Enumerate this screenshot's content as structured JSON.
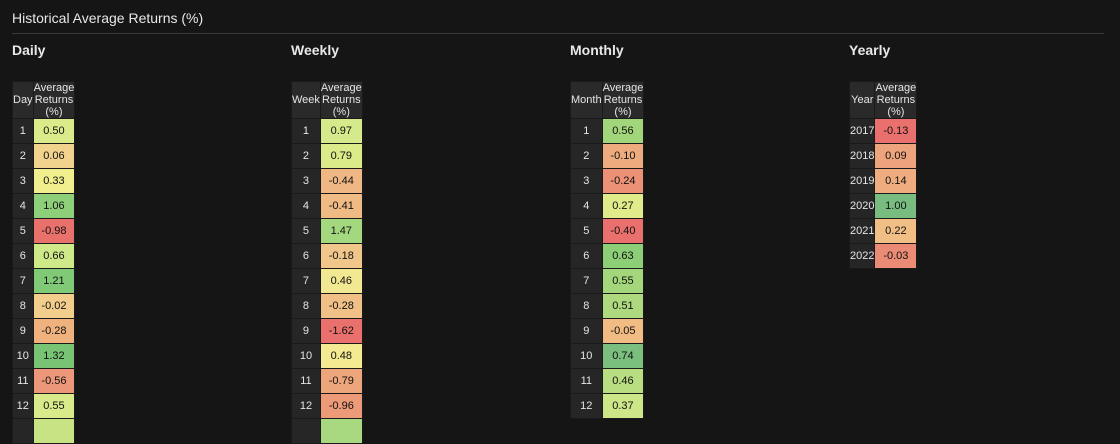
{
  "title": "Historical Average Returns (%)",
  "panels": [
    {
      "id": "daily",
      "heading": "Daily",
      "key_header": "Day",
      "value_header": "Average Returns (%)",
      "rows": [
        {
          "key": "1",
          "value": "0.50",
          "color": "#dbeb8a"
        },
        {
          "key": "2",
          "value": "0.06",
          "color": "#f2d38e"
        },
        {
          "key": "3",
          "value": "0.33",
          "color": "#f1ee8d"
        },
        {
          "key": "4",
          "value": "1.06",
          "color": "#8ed07a"
        },
        {
          "key": "5",
          "value": "-0.98",
          "color": "#e9716c"
        },
        {
          "key": "6",
          "value": "0.66",
          "color": "#cfe888"
        },
        {
          "key": "7",
          "value": "1.21",
          "color": "#80ca77"
        },
        {
          "key": "8",
          "value": "-0.02",
          "color": "#f2cd8c"
        },
        {
          "key": "9",
          "value": "-0.28",
          "color": "#efb27e"
        },
        {
          "key": "10",
          "value": "1.32",
          "color": "#78c474"
        },
        {
          "key": "11",
          "value": "-0.56",
          "color": "#ec967a"
        },
        {
          "key": "12",
          "value": "0.55",
          "color": "#d8ea89"
        },
        {
          "key": "",
          "value": "",
          "color": "#c8e384"
        }
      ]
    },
    {
      "id": "weekly",
      "heading": "Weekly",
      "key_header": "Week",
      "value_header": "Average Returns (%)",
      "rows": [
        {
          "key": "1",
          "value": "0.97",
          "color": "#d5ea8b"
        },
        {
          "key": "2",
          "value": "0.79",
          "color": "#dceb8a"
        },
        {
          "key": "3",
          "value": "-0.44",
          "color": "#efb783"
        },
        {
          "key": "4",
          "value": "-0.41",
          "color": "#efba83"
        },
        {
          "key": "5",
          "value": "1.47",
          "color": "#a4d87f"
        },
        {
          "key": "6",
          "value": "-0.18",
          "color": "#f1c68a"
        },
        {
          "key": "7",
          "value": "0.46",
          "color": "#f3e892"
        },
        {
          "key": "8",
          "value": "-0.28",
          "color": "#f0c086"
        },
        {
          "key": "9",
          "value": "-1.62",
          "color": "#e9706c"
        },
        {
          "key": "10",
          "value": "0.48",
          "color": "#f3ea91"
        },
        {
          "key": "11",
          "value": "-0.79",
          "color": "#eda67b"
        },
        {
          "key": "12",
          "value": "-0.96",
          "color": "#ec9a78"
        },
        {
          "key": "",
          "value": "",
          "color": "#a8d980"
        }
      ]
    },
    {
      "id": "monthly",
      "heading": "Monthly",
      "key_header": "Month",
      "value_header": "Average Returns (%)",
      "rows": [
        {
          "key": "1",
          "value": "0.56",
          "color": "#a2d67b"
        },
        {
          "key": "2",
          "value": "-0.10",
          "color": "#eeab7e"
        },
        {
          "key": "3",
          "value": "-0.24",
          "color": "#ec9176"
        },
        {
          "key": "4",
          "value": "0.27",
          "color": "#e2eb8a"
        },
        {
          "key": "5",
          "value": "-0.40",
          "color": "#e9706c"
        },
        {
          "key": "6",
          "value": "0.63",
          "color": "#8ccf77"
        },
        {
          "key": "7",
          "value": "0.55",
          "color": "#a4d67c"
        },
        {
          "key": "8",
          "value": "0.51",
          "color": "#aed97e"
        },
        {
          "key": "9",
          "value": "-0.05",
          "color": "#f1bb84"
        },
        {
          "key": "10",
          "value": "0.74",
          "color": "#7bbf7e"
        },
        {
          "key": "11",
          "value": "0.46",
          "color": "#b9de81"
        },
        {
          "key": "12",
          "value": "0.37",
          "color": "#cde687"
        }
      ]
    },
    {
      "id": "yearly",
      "heading": "Yearly",
      "key_header": "Year",
      "value_header": "Average Returns (%)",
      "rows": [
        {
          "key": "2017",
          "value": "-0.13",
          "color": "#e9706c"
        },
        {
          "key": "2018",
          "value": "0.09",
          "color": "#eda47d"
        },
        {
          "key": "2019",
          "value": "0.14",
          "color": "#eeac7f"
        },
        {
          "key": "2020",
          "value": "1.00",
          "color": "#78bc7f"
        },
        {
          "key": "2021",
          "value": "0.22",
          "color": "#f1bf85"
        },
        {
          "key": "2022",
          "value": "-0.03",
          "color": "#ea8c75"
        }
      ]
    }
  ]
}
